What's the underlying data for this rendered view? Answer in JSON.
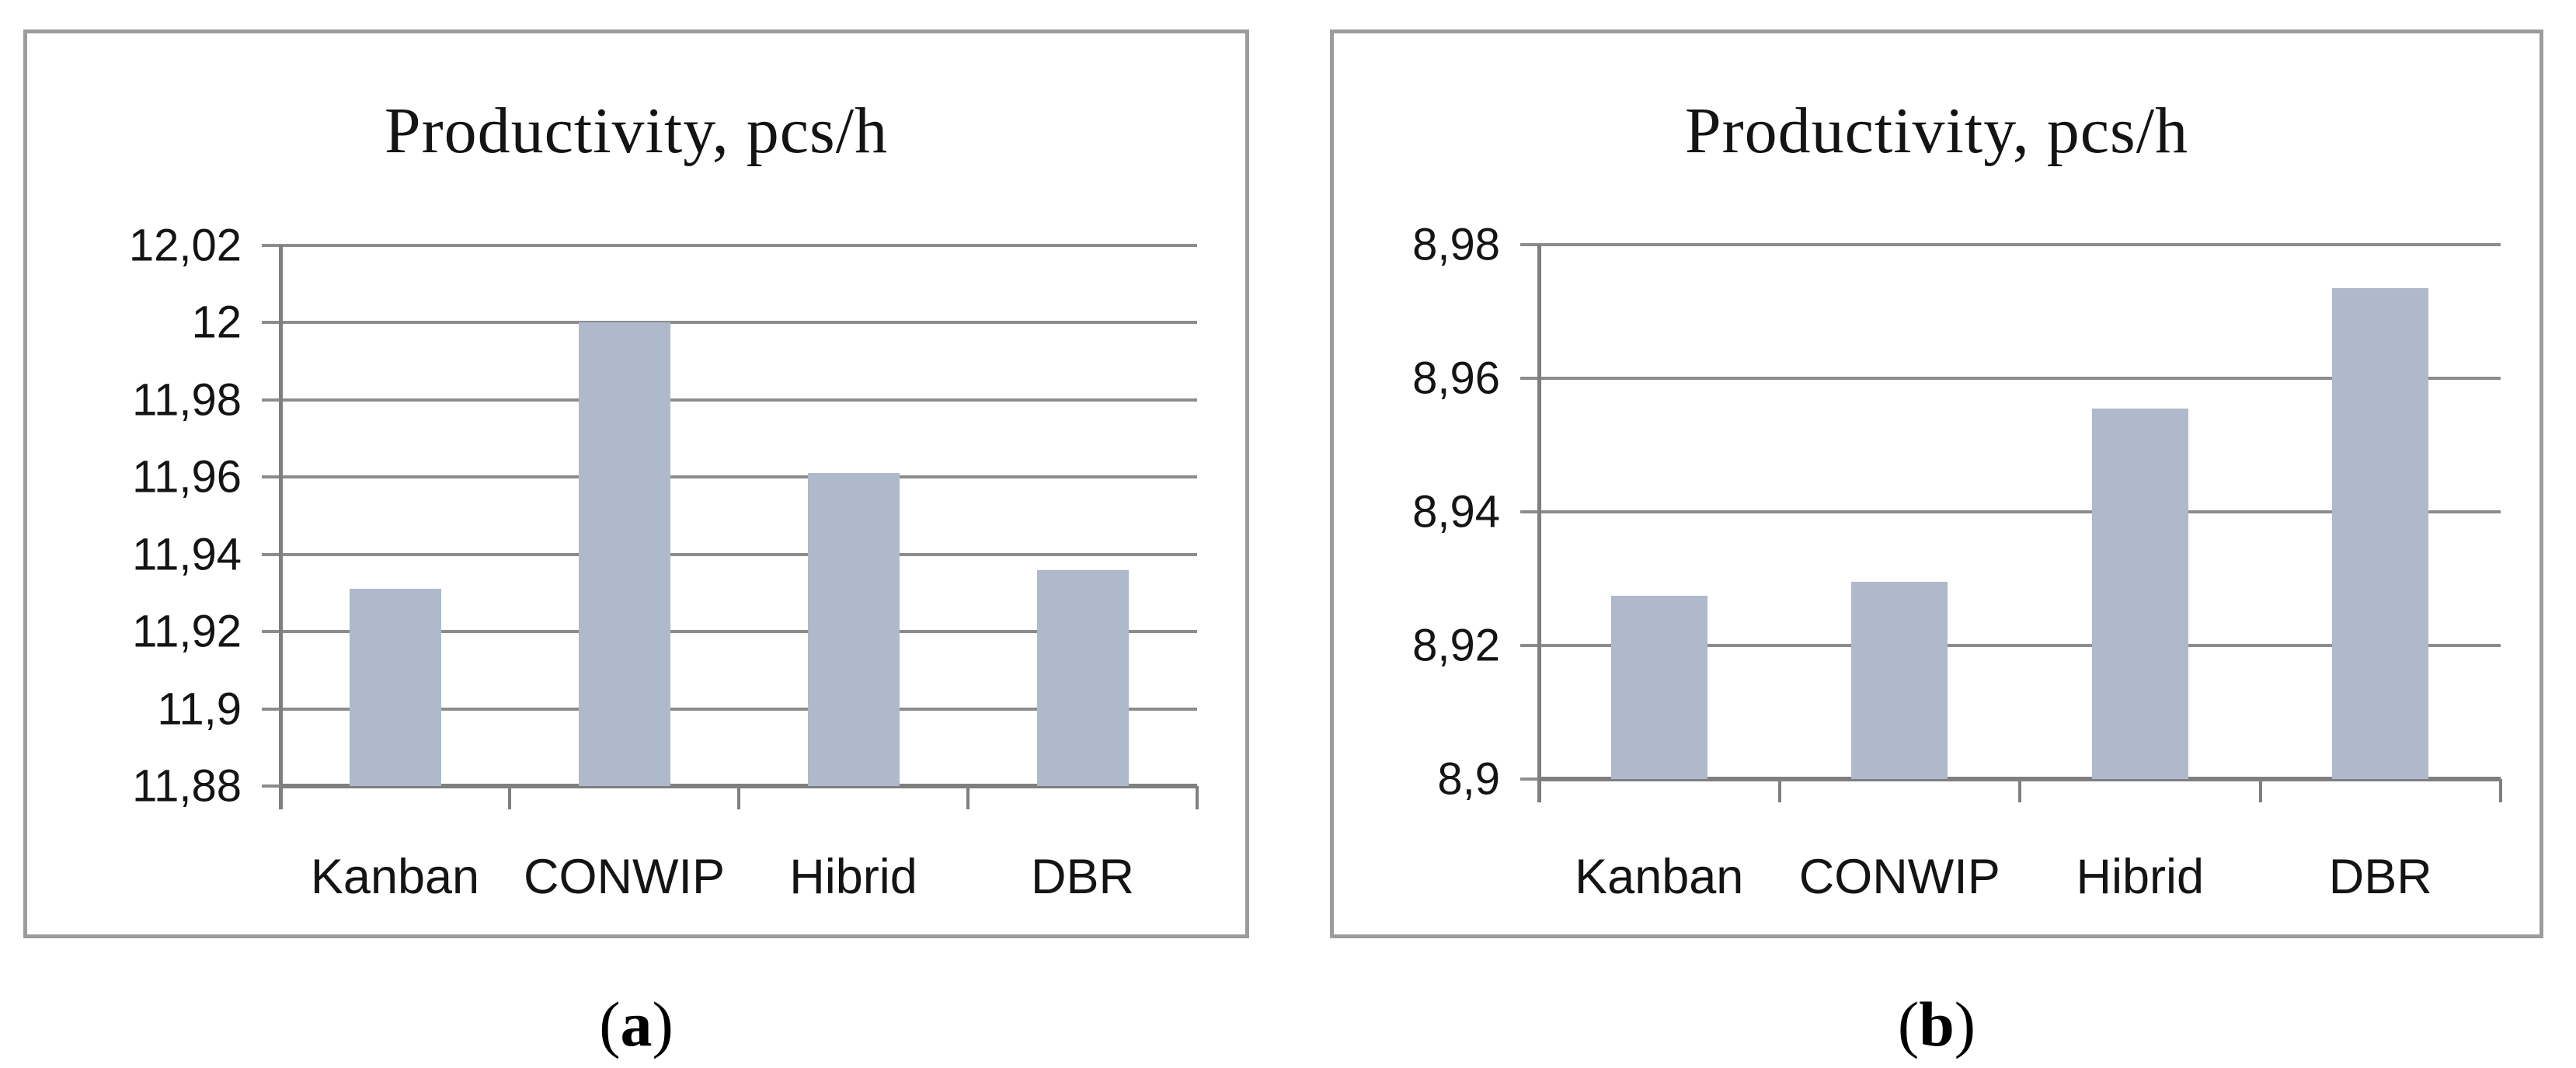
{
  "figure": {
    "background": "#ffffff"
  },
  "colors": {
    "bar_fill": "#AEB9CB",
    "gridline": "#8C8C8C",
    "axis_line": "#7F7F7F",
    "panel_border": "#9C9C9C",
    "text": "#141414"
  },
  "captions": [
    {
      "pre": "(",
      "letter": "a",
      "post": ")"
    },
    {
      "pre": "(",
      "letter": "b",
      "post": ")"
    }
  ],
  "chart_data": [
    {
      "id": "a",
      "type": "bar",
      "title": "Productivity, pcs/h",
      "categories": [
        "Kanban",
        "CONWIP",
        "Hibrid",
        "DBR"
      ],
      "values": [
        11.931,
        12.0,
        11.961,
        11.936
      ],
      "ylim": [
        11.88,
        12.02
      ],
      "ytick_step": 0.02,
      "yticks": [
        {
          "value": 12.02,
          "label": "12,02"
        },
        {
          "value": 12.0,
          "label": "12"
        },
        {
          "value": 11.98,
          "label": "11,98"
        },
        {
          "value": 11.96,
          "label": "11,96"
        },
        {
          "value": 11.94,
          "label": "11,94"
        },
        {
          "value": 11.92,
          "label": "11,92"
        },
        {
          "value": 11.9,
          "label": "11,9"
        },
        {
          "value": 11.88,
          "label": "11,88"
        }
      ],
      "grid": true,
      "legend_position": "none",
      "xlabel": "",
      "ylabel": ""
    },
    {
      "id": "b",
      "type": "bar",
      "title": "Productivity, pcs/h",
      "categories": [
        "Kanban",
        "CONWIP",
        "Hibrid",
        "DBR"
      ],
      "values": [
        8.9275,
        8.9295,
        8.9555,
        8.9735
      ],
      "ylim": [
        8.9,
        8.98
      ],
      "ytick_step": 0.02,
      "yticks": [
        {
          "value": 8.98,
          "label": "8,98"
        },
        {
          "value": 8.96,
          "label": "8,96"
        },
        {
          "value": 8.94,
          "label": "8,94"
        },
        {
          "value": 8.92,
          "label": "8,92"
        },
        {
          "value": 8.9,
          "label": "8,9"
        }
      ],
      "grid": true,
      "legend_position": "none",
      "xlabel": "",
      "ylabel": ""
    }
  ]
}
